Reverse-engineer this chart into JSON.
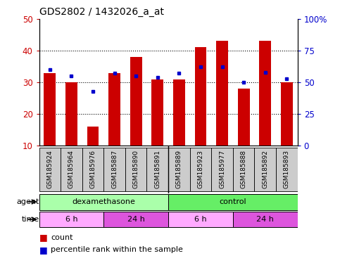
{
  "title": "GDS2802 / 1432026_a_at",
  "samples": [
    "GSM185924",
    "GSM185964",
    "GSM185976",
    "GSM185887",
    "GSM185890",
    "GSM185891",
    "GSM185889",
    "GSM185923",
    "GSM185977",
    "GSM185888",
    "GSM185892",
    "GSM185893"
  ],
  "counts": [
    33,
    30,
    16,
    33,
    38,
    31,
    31,
    41,
    43,
    28,
    43,
    30
  ],
  "percentile_ranks": [
    60,
    55,
    43,
    57,
    55,
    54,
    57,
    62,
    62,
    50,
    58,
    53
  ],
  "ylim_left": [
    10,
    50
  ],
  "ylim_right": [
    0,
    100
  ],
  "yticks_left": [
    10,
    20,
    30,
    40,
    50
  ],
  "yticks_right": [
    0,
    25,
    50,
    75,
    100
  ],
  "ytick_labels_right": [
    "0",
    "25",
    "50",
    "75",
    "100%"
  ],
  "bar_color": "#cc0000",
  "dot_color": "#0000cc",
  "agent_groups": [
    {
      "label": "dexamethasone",
      "start": 0,
      "end": 6,
      "color": "#aaffaa"
    },
    {
      "label": "control",
      "start": 6,
      "end": 12,
      "color": "#66ee66"
    }
  ],
  "time_groups": [
    {
      "label": "6 h",
      "start": 0,
      "end": 3,
      "color": "#ffaaff"
    },
    {
      "label": "24 h",
      "start": 3,
      "end": 6,
      "color": "#dd55dd"
    },
    {
      "label": "6 h",
      "start": 6,
      "end": 9,
      "color": "#ffaaff"
    },
    {
      "label": "24 h",
      "start": 9,
      "end": 12,
      "color": "#dd55dd"
    }
  ],
  "legend_count_color": "#cc0000",
  "legend_dot_color": "#0000cc",
  "tick_label_color_left": "#cc0000",
  "tick_label_color_right": "#0000cc",
  "plot_bg_color": "#ffffff",
  "xtick_bg_color": "#cccccc",
  "grid_color": "#000000",
  "grid_dotted_ticks": [
    20,
    30,
    40
  ]
}
